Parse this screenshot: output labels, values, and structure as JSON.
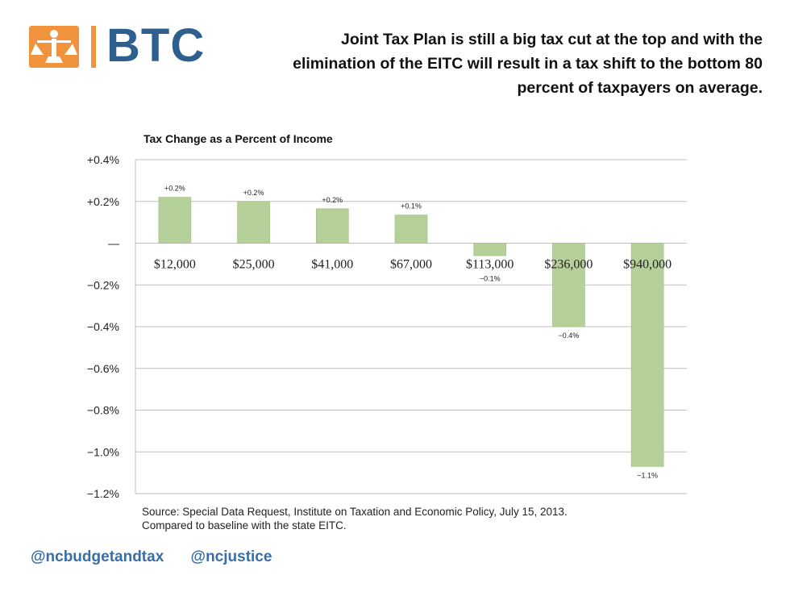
{
  "logo": {
    "text": "BTC",
    "icon": "scales-of-justice-icon"
  },
  "headline": [
    "Joint Tax Plan is still a big tax cut at the top and with the",
    "elimination of the EITC will result in a tax shift to the bottom 80",
    "percent of taxpayers on average."
  ],
  "colors": {
    "bar": "#b6d09a",
    "bar_edge": "#9bbd7c",
    "grid": "#bfbfbf",
    "axis_text": "#222222",
    "logo_orange": "#f0933c",
    "logo_blue": "#2e5f8f",
    "handle_blue": "#3a6ea5"
  },
  "chart_data": {
    "type": "bar",
    "title": "Tax Change as a Percent of Income",
    "categories": [
      "$12,000",
      "$25,000",
      "$41,000",
      "$67,000",
      "$113,000",
      "$236,000",
      "$940,000"
    ],
    "values": [
      0.22,
      0.2,
      0.165,
      0.135,
      -0.06,
      -0.4,
      -1.07
    ],
    "data_labels": [
      "+0.2%",
      "+0.2%",
      "+0.2%",
      "+0.1%",
      "−0.1%",
      "−0.4%",
      "−1.1%"
    ],
    "ylim": [
      -1.2,
      0.4
    ],
    "yticks": [
      0.4,
      0.2,
      0,
      -0.2,
      -0.4,
      -0.6,
      -0.8,
      -1.0,
      -1.2
    ],
    "ytick_labels": [
      "+0.4%",
      "+0.2%",
      "—",
      "−0.2%",
      "−0.4%",
      "−0.6%",
      "−0.8%",
      "−1.0%",
      "−1.2%"
    ],
    "xlabel": "",
    "ylabel": "",
    "grid": true
  },
  "source": [
    "Source: Special Data Request, Institute  on Taxation and Economic Policy, July 15, 2013.",
    "Compared to baseline with the state EITC."
  ],
  "handles": [
    "@ncbudgetandtax",
    "@ncjustice"
  ]
}
